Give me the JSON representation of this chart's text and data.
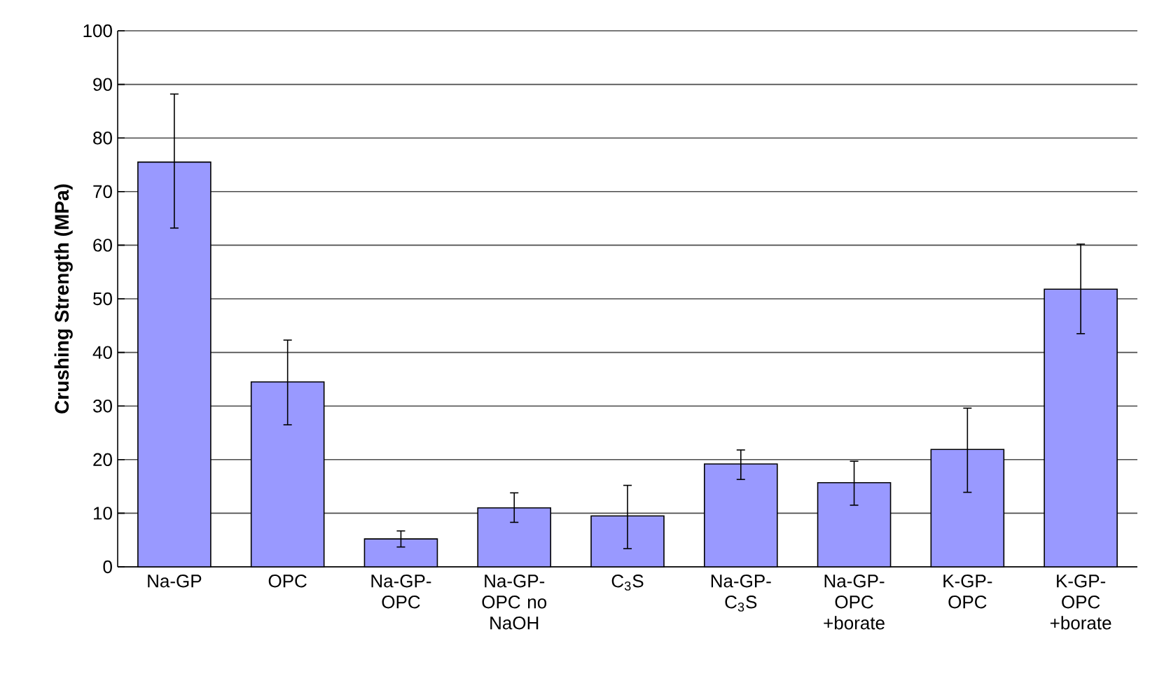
{
  "chart_data": {
    "type": "bar",
    "ylabel": "Crushing Strength (MPa)",
    "categories": [
      "Na-GP",
      "OPC",
      "Na-GP-OPC",
      "Na-GP-OPC no NaOH",
      "C$_{3}$S",
      "Na-GP-C$_{3}$S",
      "Na-GP-OPC +borate",
      "K-GP-OPC",
      "K-GP-OPC +borate"
    ],
    "values": [
      75.5,
      34.5,
      5.2,
      11,
      9.5,
      19.2,
      15.7,
      21.9,
      51.8
    ],
    "errors": [
      [
        63.2,
        88.2
      ],
      [
        26.5,
        42.3
      ],
      [
        3.7,
        6.7
      ],
      [
        8.3,
        13.8
      ],
      [
        3.4,
        15.2
      ],
      [
        16.3,
        21.8
      ],
      [
        11.5,
        19.7
      ],
      [
        13.9,
        29.6
      ],
      [
        43.5,
        60.2
      ]
    ],
    "color": "#9999ff",
    "ylim": [
      0,
      100
    ],
    "yticks": [
      0,
      10,
      20,
      30,
      40,
      50,
      60,
      70,
      80,
      90,
      100
    ],
    "grid": "y"
  }
}
